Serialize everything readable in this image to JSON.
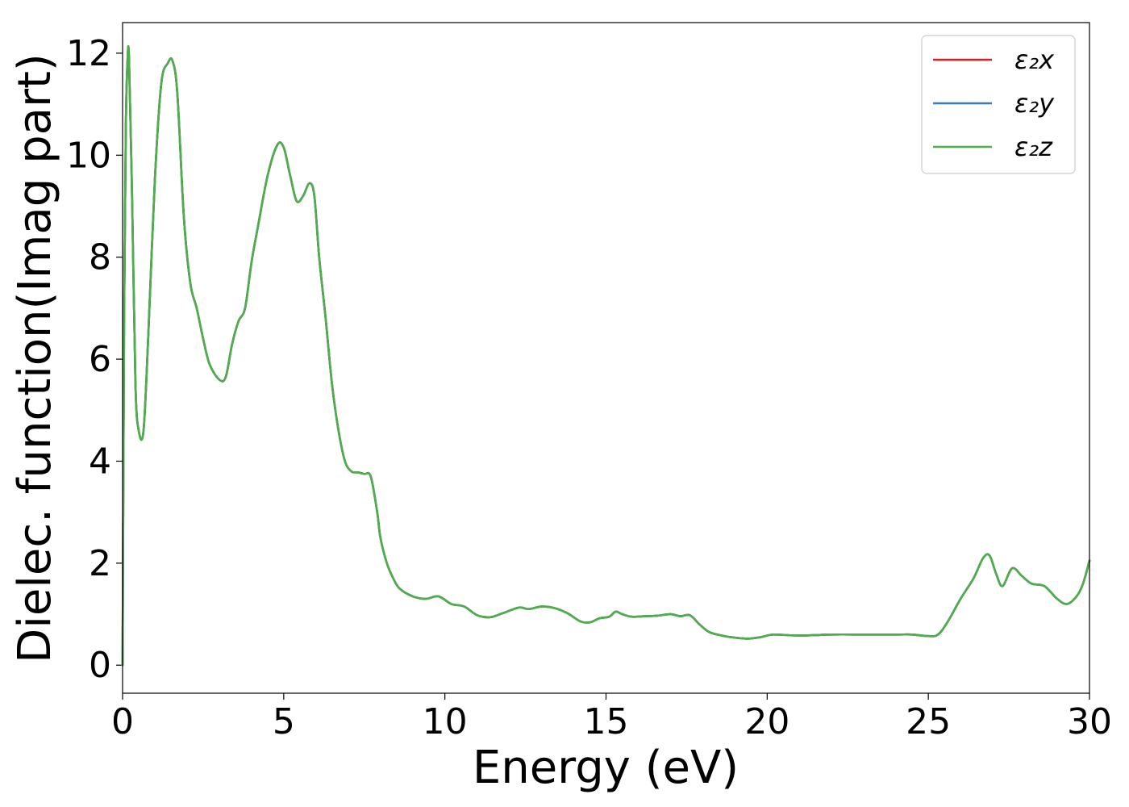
{
  "chart_data": {
    "type": "line",
    "xlabel": "Energy (eV)",
    "ylabel": "Dielec. function(Imag part)",
    "xlim": [
      0,
      30
    ],
    "ylim": [
      -0.55,
      12.6
    ],
    "xticks": [
      0,
      5,
      10,
      15,
      20,
      25,
      30
    ],
    "yticks": [
      0,
      2,
      4,
      6,
      8,
      10,
      12
    ],
    "xtick_labels": [
      "0",
      "5",
      "10",
      "15",
      "20",
      "25",
      "30"
    ],
    "ytick_labels": [
      "0",
      "2",
      "4",
      "6",
      "8",
      "10",
      "12"
    ],
    "grid": false,
    "legend_position": "top-right",
    "x": [
      0,
      0.05,
      0.1,
      0.15,
      0.2,
      0.3,
      0.4,
      0.5,
      0.65,
      0.8,
      1.0,
      1.2,
      1.4,
      1.55,
      1.7,
      1.9,
      2.1,
      2.3,
      2.5,
      2.7,
      3.0,
      3.2,
      3.4,
      3.6,
      3.8,
      4.0,
      4.2,
      4.5,
      4.8,
      5.0,
      5.2,
      5.4,
      5.6,
      5.8,
      5.95,
      6.1,
      6.3,
      6.5,
      6.7,
      6.9,
      7.1,
      7.3,
      7.5,
      7.7,
      7.9,
      8.0,
      8.2,
      8.4,
      8.6,
      9.0,
      9.4,
      9.8,
      10.2,
      10.6,
      11.0,
      11.4,
      11.8,
      12.3,
      12.6,
      13.0,
      13.4,
      13.8,
      14.2,
      14.5,
      14.8,
      15.1,
      15.3,
      15.5,
      15.8,
      16.2,
      16.6,
      17.0,
      17.3,
      17.6,
      17.9,
      18.2,
      18.6,
      19.0,
      19.4,
      19.8,
      20.2,
      21.0,
      22.0,
      23.0,
      24.0,
      24.5,
      25.0,
      25.3,
      25.6,
      26.0,
      26.4,
      26.7,
      26.9,
      27.1,
      27.3,
      27.6,
      27.9,
      28.2,
      28.6,
      29.0,
      29.3,
      29.6,
      29.8,
      30.0
    ],
    "series": [
      {
        "name": "ε₂x",
        "color": "#e41a1c",
        "values": [
          0.0,
          7.0,
          10.5,
          11.8,
          11.9,
          9.0,
          5.5,
          4.6,
          4.6,
          6.5,
          9.5,
          11.4,
          11.8,
          11.85,
          11.2,
          8.8,
          7.5,
          7.0,
          6.4,
          5.9,
          5.6,
          5.65,
          6.3,
          6.75,
          7.0,
          7.9,
          8.6,
          9.6,
          10.2,
          10.15,
          9.6,
          9.1,
          9.2,
          9.45,
          9.2,
          8.0,
          6.8,
          5.5,
          4.6,
          4.0,
          3.8,
          3.78,
          3.75,
          3.7,
          3.0,
          2.5,
          2.0,
          1.7,
          1.5,
          1.35,
          1.3,
          1.35,
          1.2,
          1.15,
          0.98,
          0.94,
          1.02,
          1.13,
          1.1,
          1.15,
          1.12,
          1.02,
          0.86,
          0.84,
          0.92,
          0.95,
          1.05,
          1.0,
          0.95,
          0.96,
          0.97,
          1.0,
          0.96,
          0.98,
          0.8,
          0.65,
          0.58,
          0.54,
          0.52,
          0.55,
          0.6,
          0.58,
          0.6,
          0.6,
          0.6,
          0.6,
          0.57,
          0.6,
          0.85,
          1.3,
          1.7,
          2.1,
          2.15,
          1.8,
          1.55,
          1.9,
          1.75,
          1.6,
          1.55,
          1.3,
          1.2,
          1.35,
          1.6,
          2.05
        ]
      },
      {
        "name": "ε₂y",
        "color": "#377eb8",
        "values": [
          0.0,
          7.0,
          10.5,
          11.8,
          11.9,
          9.0,
          5.5,
          4.6,
          4.6,
          6.5,
          9.5,
          11.4,
          11.8,
          11.85,
          11.2,
          8.8,
          7.5,
          7.0,
          6.4,
          5.9,
          5.6,
          5.65,
          6.3,
          6.75,
          7.0,
          7.9,
          8.6,
          9.6,
          10.2,
          10.15,
          9.6,
          9.1,
          9.2,
          9.45,
          9.2,
          8.0,
          6.8,
          5.5,
          4.6,
          4.0,
          3.8,
          3.78,
          3.75,
          3.7,
          3.0,
          2.5,
          2.0,
          1.7,
          1.5,
          1.35,
          1.3,
          1.35,
          1.2,
          1.15,
          0.98,
          0.94,
          1.02,
          1.13,
          1.1,
          1.15,
          1.12,
          1.02,
          0.86,
          0.84,
          0.92,
          0.95,
          1.05,
          1.0,
          0.95,
          0.96,
          0.97,
          1.0,
          0.96,
          0.98,
          0.8,
          0.65,
          0.58,
          0.54,
          0.52,
          0.55,
          0.6,
          0.58,
          0.6,
          0.6,
          0.6,
          0.6,
          0.57,
          0.6,
          0.85,
          1.3,
          1.7,
          2.1,
          2.15,
          1.8,
          1.55,
          1.9,
          1.75,
          1.6,
          1.55,
          1.3,
          1.2,
          1.35,
          1.6,
          2.05
        ]
      },
      {
        "name": "ε₂z",
        "color": "#4daf4a",
        "values": [
          0.0,
          7.0,
          10.5,
          11.8,
          11.9,
          9.0,
          5.5,
          4.6,
          4.6,
          6.5,
          9.5,
          11.4,
          11.8,
          11.85,
          11.2,
          8.8,
          7.5,
          7.0,
          6.4,
          5.9,
          5.6,
          5.65,
          6.3,
          6.75,
          7.0,
          7.9,
          8.6,
          9.6,
          10.2,
          10.15,
          9.6,
          9.1,
          9.2,
          9.45,
          9.2,
          8.0,
          6.8,
          5.5,
          4.6,
          4.0,
          3.8,
          3.78,
          3.75,
          3.7,
          3.0,
          2.5,
          2.0,
          1.7,
          1.5,
          1.35,
          1.3,
          1.35,
          1.2,
          1.15,
          0.98,
          0.94,
          1.02,
          1.13,
          1.1,
          1.15,
          1.12,
          1.02,
          0.86,
          0.84,
          0.92,
          0.95,
          1.05,
          1.0,
          0.95,
          0.96,
          0.97,
          1.0,
          0.96,
          0.98,
          0.8,
          0.65,
          0.58,
          0.54,
          0.52,
          0.55,
          0.6,
          0.58,
          0.6,
          0.6,
          0.6,
          0.6,
          0.57,
          0.6,
          0.85,
          1.3,
          1.7,
          2.1,
          2.15,
          1.8,
          1.55,
          1.9,
          1.75,
          1.6,
          1.55,
          1.3,
          1.2,
          1.35,
          1.6,
          2.05
        ]
      }
    ]
  }
}
